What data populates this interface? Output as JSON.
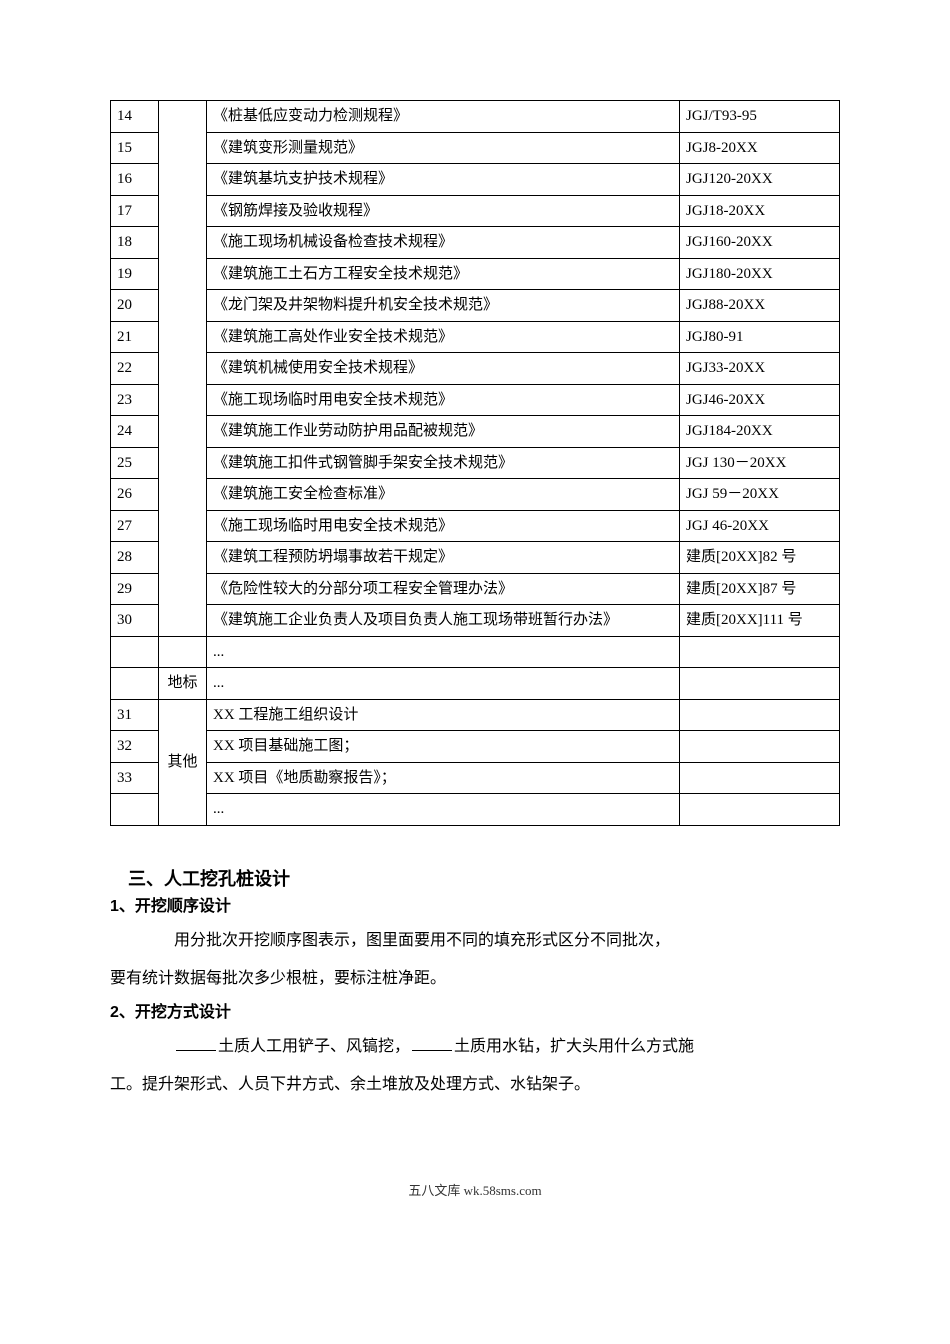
{
  "table": {
    "columns": {
      "num_width": 48,
      "cat_width": 48,
      "code_width": 160
    },
    "border_color": "#000000",
    "font_size": 15,
    "rows": [
      {
        "num": "14",
        "cat": "",
        "name": "《桩基低应变动力检测规程》",
        "code": "JGJ/T93-95",
        "cat_rowspan": 17
      },
      {
        "num": "15",
        "cat": null,
        "name": "《建筑变形测量规范》",
        "code": "JGJ8-20XX"
      },
      {
        "num": "16",
        "cat": null,
        "name": "《建筑基坑支护技术规程》",
        "code": "JGJ120-20XX"
      },
      {
        "num": "17",
        "cat": null,
        "name": "《钢筋焊接及验收规程》",
        "code": "JGJ18-20XX"
      },
      {
        "num": "18",
        "cat": null,
        "name": "《施工现场机械设备检查技术规程》",
        "code": "JGJ160-20XX"
      },
      {
        "num": "19",
        "cat": null,
        "name": "《建筑施工土石方工程安全技术规范》",
        "code": "JGJ180-20XX"
      },
      {
        "num": "20",
        "cat": null,
        "name": "《龙门架及井架物料提升机安全技术规范》",
        "code": "JGJ88-20XX"
      },
      {
        "num": "21",
        "cat": null,
        "name": "《建筑施工高处作业安全技术规范》",
        "code": "JGJ80-91"
      },
      {
        "num": "22",
        "cat": null,
        "name": "《建筑机械使用安全技术规程》",
        "code": "JGJ33-20XX"
      },
      {
        "num": "23",
        "cat": null,
        "name": "《施工现场临时用电安全技术规范》",
        "code": "JGJ46-20XX"
      },
      {
        "num": "24",
        "cat": null,
        "name": "《建筑施工作业劳动防护用品配被规范》",
        "code": "JGJ184-20XX"
      },
      {
        "num": "25",
        "cat": null,
        "name": "《建筑施工扣件式钢管脚手架安全技术规范》",
        "code": "JGJ 130－20XX"
      },
      {
        "num": "26",
        "cat": null,
        "name": "《建筑施工安全检查标准》",
        "code": "JGJ 59－20XX"
      },
      {
        "num": "27",
        "cat": null,
        "name": "《施工现场临时用电安全技术规范》",
        "code": "JGJ 46-20XX"
      },
      {
        "num": "28",
        "cat": null,
        "name": "《建筑工程预防坍塌事故若干规定》",
        "code": "建质[20XX]82 号"
      },
      {
        "num": "29",
        "cat": null,
        "name": "《危险性较大的分部分项工程安全管理办法》",
        "code": "建质[20XX]87 号"
      },
      {
        "num": "30",
        "cat": null,
        "name": "《建筑施工企业负责人及项目负责人施工现场带班暂行办法》",
        "code": "建质[20XX]111 号"
      },
      {
        "num": "",
        "cat": "",
        "name": "...",
        "code": "",
        "cat_rowspan": 1
      },
      {
        "num": "",
        "cat": "地标",
        "name": "...",
        "code": "",
        "cat_rowspan": 1
      },
      {
        "num": "31",
        "cat": "其他",
        "name": "XX 工程施工组织设计",
        "code": "",
        "cat_rowspan": 4
      },
      {
        "num": "32",
        "cat": null,
        "name": "XX 项目基础施工图；",
        "code": ""
      },
      {
        "num": "33",
        "cat": null,
        "name": "XX 项目《地质勘察报告》；",
        "code": ""
      },
      {
        "num": "",
        "cat": null,
        "name": "...",
        "code": ""
      }
    ]
  },
  "section3": {
    "heading": "三、人工挖孔桩设计",
    "sub1_num": "1",
    "sub1_title": "、开挖顺序设计",
    "sub1_para_a": "用分批次开挖顺序图表示，图里面要用不同的填充形式区分不同批次，",
    "sub1_para_b": "要有统计数据每批次多少根桩，要标注桩净距。",
    "sub2_num": "2",
    "sub2_title": "、开挖方式设计",
    "sub2_para_a_1": "土质人工用铲子、风镐挖，",
    "sub2_para_a_2": "土质用水钻，扩大头用什么方式施",
    "sub2_para_b": "工。提升架形式、人员下井方式、余土堆放及处理方式、水钻架子。"
  },
  "footer": {
    "text": "五八文库 wk.58sms.com"
  },
  "colors": {
    "text": "#000000",
    "background": "#ffffff",
    "footer_text": "#333333"
  },
  "typography": {
    "body_font": "SimSun",
    "body_size": 16,
    "table_font_size": 15,
    "heading_size": 18,
    "footer_size": 13
  }
}
